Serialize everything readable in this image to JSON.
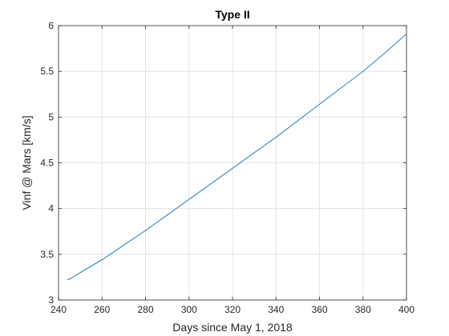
{
  "chart_data": {
    "type": "line",
    "title": "Type II",
    "xlabel": "Days since May 1, 2018",
    "ylabel": "Vinf @ Mars [km/s]",
    "xlim": [
      240,
      400
    ],
    "ylim": [
      3,
      6
    ],
    "xticks": [
      240,
      260,
      280,
      300,
      320,
      340,
      360,
      380,
      400
    ],
    "yticks": [
      3,
      3.5,
      4,
      4.5,
      5,
      5.5,
      6
    ],
    "xtick_labels": [
      "240",
      "260",
      "280",
      "300",
      "320",
      "340",
      "360",
      "380",
      "400"
    ],
    "ytick_labels": [
      "3",
      "3.5",
      "4",
      "4.5",
      "5",
      "5.5",
      "6"
    ],
    "grid": true,
    "series": [
      {
        "name": "Type II",
        "color": "#0072bd",
        "x": [
          244,
          246,
          250,
          260,
          270,
          280,
          290,
          300,
          310,
          320,
          330,
          340,
          350,
          360,
          370,
          380,
          390,
          400
        ],
        "y": [
          3.22,
          3.24,
          3.3,
          3.44,
          3.6,
          3.76,
          3.93,
          4.1,
          4.27,
          4.44,
          4.61,
          4.78,
          4.96,
          5.14,
          5.32,
          5.5,
          5.7,
          5.91
        ]
      }
    ]
  }
}
